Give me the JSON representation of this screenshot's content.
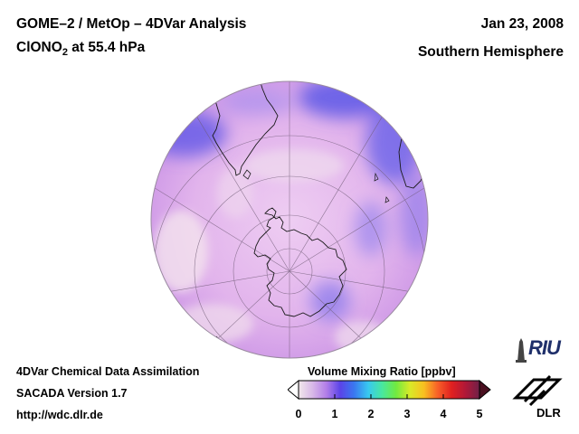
{
  "header": {
    "title_line1": "GOME–2 / MetOp – 4DVar Analysis",
    "title_line2_main": "ClONO",
    "title_line2_sub": "2",
    "title_line2_rest": " at 55.4 hPa",
    "date": "Jan 23, 2008",
    "region": "Southern Hemisphere"
  },
  "footer": {
    "line1": "4DVar Chemical Data Assimilation",
    "line2": "SACADA Version 1.7",
    "line3": "http://wdc.dlr.de"
  },
  "colorbar": {
    "title": "Volume Mixing Ratio [ppbv]",
    "ticks": [
      "0",
      "1",
      "2",
      "3",
      "4",
      "5"
    ],
    "colors": [
      "#f2e8ea",
      "#d8b8e8",
      "#b27ee8",
      "#5a44e8",
      "#3a78f0",
      "#38c8f0",
      "#48e8a0",
      "#70ea40",
      "#d8ea28",
      "#f8c020",
      "#f86028",
      "#e02020",
      "#b01838",
      "#702048"
    ]
  },
  "logos": {
    "riu": "RIU",
    "dlr": "DLR"
  },
  "map": {
    "projection": "orthographic-south-polar",
    "ocean_color": "#e2b4ec",
    "high_color": "#6a60e8"
  }
}
